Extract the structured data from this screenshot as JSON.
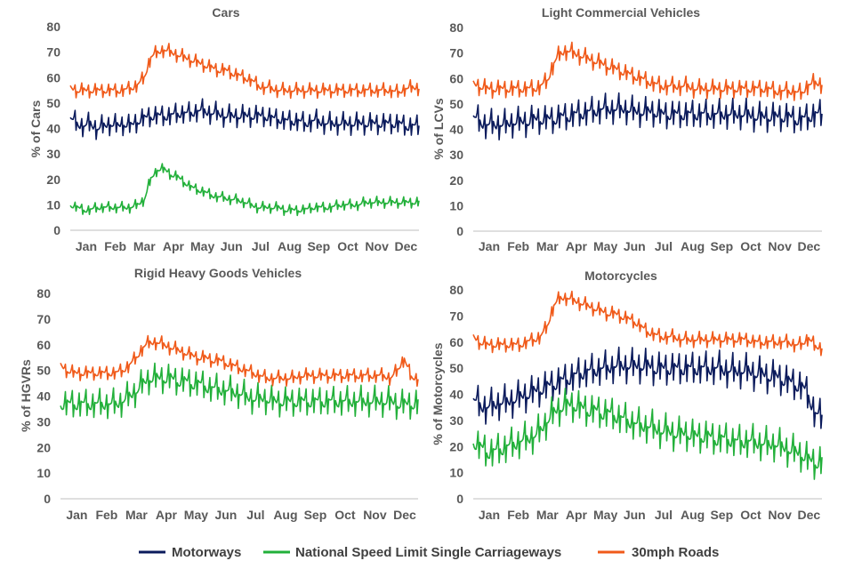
{
  "colors": {
    "motorways": "#0b1b5c",
    "nsl": "#22b03a",
    "thirty": "#f05a1a",
    "text": "#595959",
    "axis": "#bfbfbf"
  },
  "legend": [
    {
      "key": "motorways",
      "label": "Motorways"
    },
    {
      "key": "nsl",
      "label": "National Speed Limit Single Carriageways"
    },
    {
      "key": "thirty",
      "label": "30mph Roads"
    }
  ],
  "chart_data": [
    {
      "type": "line",
      "title": "Cars",
      "ylabel": "% of Cars",
      "ylim": [
        0,
        80
      ],
      "yticks": [
        "0",
        "10",
        "20",
        "30",
        "40",
        "50",
        "60",
        "70",
        "80"
      ],
      "months": [
        "Jan",
        "Feb",
        "Mar",
        "Apr",
        "May",
        "Jun",
        "Jul",
        "Aug",
        "Sep",
        "Oct",
        "Nov",
        "Dec"
      ],
      "series": [
        {
          "key": "motorways",
          "name": "Motorways",
          "approx_weekly_values": [
            44,
            42,
            41,
            42,
            40,
            41,
            42,
            41,
            42,
            41,
            43,
            44,
            45,
            45,
            45,
            45,
            46,
            46,
            46,
            47,
            47,
            46,
            46,
            45,
            45,
            45,
            45,
            45,
            45,
            45,
            44,
            44,
            43,
            43,
            43,
            42,
            43,
            43,
            42,
            42,
            42,
            42,
            42,
            42,
            42,
            42,
            42,
            42,
            42,
            42,
            41,
            41
          ],
          "weekly_amplitude": 6
        },
        {
          "key": "nsl",
          "name": "National Speed Limit Single Carriageways",
          "approx_weekly_values": [
            10,
            9,
            8,
            8,
            9,
            9,
            9,
            9,
            9,
            9,
            10,
            12,
            20,
            24,
            24,
            22,
            21,
            19,
            17,
            16,
            15,
            14,
            13,
            13,
            12,
            12,
            11,
            10,
            9,
            9,
            9,
            9,
            8,
            8,
            8,
            8,
            9,
            9,
            9,
            9,
            10,
            10,
            10,
            10,
            11,
            11,
            11,
            11,
            11,
            11,
            11,
            11
          ],
          "weekly_amplitude": 3
        },
        {
          "key": "thirty",
          "name": "30mph Roads",
          "approx_weekly_values": [
            56,
            55,
            55,
            55,
            55,
            55,
            55,
            55,
            55,
            56,
            57,
            60,
            68,
            70,
            71,
            70,
            69,
            68,
            67,
            66,
            65,
            64,
            63,
            63,
            62,
            61,
            60,
            59,
            57,
            56,
            56,
            55,
            55,
            55,
            55,
            55,
            55,
            55,
            55,
            55,
            55,
            55,
            55,
            55,
            55,
            55,
            55,
            55,
            55,
            54,
            56,
            56
          ],
          "weekly_amplitude": 4
        }
      ]
    },
    {
      "type": "line",
      "title": "Light Commercial Vehicles",
      "ylabel": "% of LCVs",
      "ylim": [
        0,
        80
      ],
      "yticks": [
        "0",
        "10",
        "20",
        "30",
        "40",
        "50",
        "60",
        "70",
        "80"
      ],
      "months": [
        "Jan",
        "Feb",
        "Mar",
        "Apr",
        "May",
        "Jun",
        "Jul",
        "Aug",
        "Sep",
        "Oct",
        "Nov",
        "Dec"
      ],
      "series": [
        {
          "key": "motorways",
          "name": "Motorways",
          "approx_weekly_values": [
            45,
            43,
            42,
            42,
            42,
            42,
            43,
            43,
            43,
            44,
            44,
            44,
            44,
            45,
            45,
            46,
            46,
            47,
            47,
            48,
            48,
            48,
            48,
            48,
            47,
            47,
            47,
            47,
            46,
            46,
            46,
            46,
            46,
            46,
            46,
            46,
            46,
            46,
            46,
            46,
            46,
            46,
            45,
            45,
            45,
            45,
            45,
            45,
            44,
            44,
            45,
            46
          ],
          "weekly_amplitude": 8
        },
        {
          "key": "nsl",
          "name": "National Speed Limit Single Carriageways",
          "approx_weekly_values": [],
          "weekly_amplitude": 0
        },
        {
          "key": "thirty",
          "name": "30mph Roads",
          "approx_weekly_values": [
            58,
            57,
            56,
            56,
            56,
            56,
            56,
            56,
            56,
            56,
            57,
            59,
            66,
            70,
            71,
            70,
            69,
            68,
            67,
            66,
            65,
            64,
            63,
            62,
            61,
            60,
            59,
            58,
            57,
            57,
            57,
            57,
            57,
            56,
            56,
            56,
            56,
            56,
            56,
            56,
            56,
            56,
            56,
            56,
            56,
            55,
            55,
            55,
            55,
            54,
            58,
            58
          ],
          "weekly_amplitude": 5
        }
      ]
    },
    {
      "type": "line",
      "title": "Rigid Heavy Goods Vehicles",
      "ylabel": "% of HGVRs",
      "ylim": [
        0,
        80
      ],
      "yticks": [
        "0",
        "10",
        "20",
        "30",
        "40",
        "50",
        "60",
        "70",
        "80"
      ],
      "months": [
        "Jan",
        "Feb",
        "Mar",
        "Apr",
        "May",
        "Jun",
        "Jul",
        "Aug",
        "Sep",
        "Oct",
        "Nov",
        "Dec"
      ],
      "series": [
        {
          "key": "motorways",
          "name": "Motorways",
          "approx_weekly_values": [],
          "weekly_amplitude": 0
        },
        {
          "key": "nsl",
          "name": "National Speed Limit Single Carriageways",
          "approx_weekly_values": [
            37,
            37,
            37,
            37,
            37,
            37,
            37,
            37,
            37,
            38,
            40,
            42,
            45,
            47,
            47,
            47,
            47,
            46,
            46,
            45,
            45,
            44,
            43,
            43,
            42,
            42,
            41,
            40,
            39,
            39,
            39,
            38,
            38,
            38,
            38,
            38,
            38,
            38,
            38,
            38,
            38,
            38,
            38,
            38,
            38,
            38,
            38,
            38,
            38,
            37,
            37,
            37
          ],
          "weekly_amplitude": 8
        },
        {
          "key": "thirty",
          "name": "30mph Roads",
          "approx_weekly_values": [
            52,
            50,
            49,
            49,
            49,
            49,
            49,
            49,
            49,
            50,
            52,
            55,
            59,
            61,
            61,
            60,
            59,
            58,
            57,
            56,
            55,
            55,
            54,
            54,
            53,
            52,
            51,
            50,
            49,
            48,
            47,
            47,
            47,
            47,
            47,
            48,
            48,
            48,
            48,
            48,
            48,
            48,
            48,
            48,
            48,
            48,
            48,
            48,
            47,
            50,
            55,
            47
          ],
          "weekly_amplitude": 4
        }
      ]
    },
    {
      "type": "line",
      "title": "Motorcycles",
      "ylabel": "% of Motorcycles",
      "ylim": [
        0,
        80
      ],
      "yticks": [
        "0",
        "10",
        "20",
        "30",
        "40",
        "50",
        "60",
        "70",
        "80"
      ],
      "months": [
        "Jan",
        "Feb",
        "Mar",
        "Apr",
        "May",
        "Jun",
        "Jul",
        "Aug",
        "Sep",
        "Oct",
        "Nov",
        "Dec"
      ],
      "series": [
        {
          "key": "motorways",
          "name": "Motorways",
          "approx_weekly_values": [
            38,
            36,
            35,
            36,
            37,
            37,
            38,
            39,
            40,
            41,
            42,
            43,
            44,
            45,
            46,
            47,
            48,
            49,
            49,
            50,
            50,
            51,
            51,
            51,
            51,
            51,
            51,
            50,
            50,
            50,
            50,
            50,
            50,
            50,
            50,
            50,
            50,
            50,
            49,
            49,
            49,
            49,
            48,
            48,
            47,
            47,
            46,
            45,
            44,
            43,
            40,
            32
          ],
          "weekly_amplitude": 9
        },
        {
          "key": "nsl",
          "name": "National Speed Limit Single Carriageways",
          "approx_weekly_values": [
            22,
            20,
            18,
            18,
            19,
            20,
            21,
            22,
            23,
            24,
            26,
            30,
            33,
            35,
            36,
            36,
            35,
            34,
            34,
            33,
            33,
            32,
            31,
            30,
            29,
            28,
            28,
            27,
            26,
            26,
            25,
            25,
            25,
            24,
            24,
            24,
            23,
            23,
            23,
            22,
            22,
            22,
            22,
            21,
            21,
            21,
            20,
            19,
            18,
            17,
            15,
            14
          ],
          "weekly_amplitude": 9
        },
        {
          "key": "thirty",
          "name": "30mph Roads",
          "approx_weekly_values": [
            62,
            60,
            59,
            59,
            59,
            59,
            59,
            59,
            60,
            61,
            62,
            66,
            74,
            77,
            77,
            76,
            75,
            74,
            73,
            72,
            71,
            71,
            70,
            69,
            68,
            66,
            64,
            63,
            62,
            62,
            62,
            61,
            61,
            61,
            61,
            61,
            61,
            61,
            61,
            61,
            61,
            61,
            60,
            60,
            60,
            60,
            60,
            60,
            59,
            59,
            62,
            58
          ],
          "weekly_amplitude": 4
        }
      ]
    }
  ]
}
